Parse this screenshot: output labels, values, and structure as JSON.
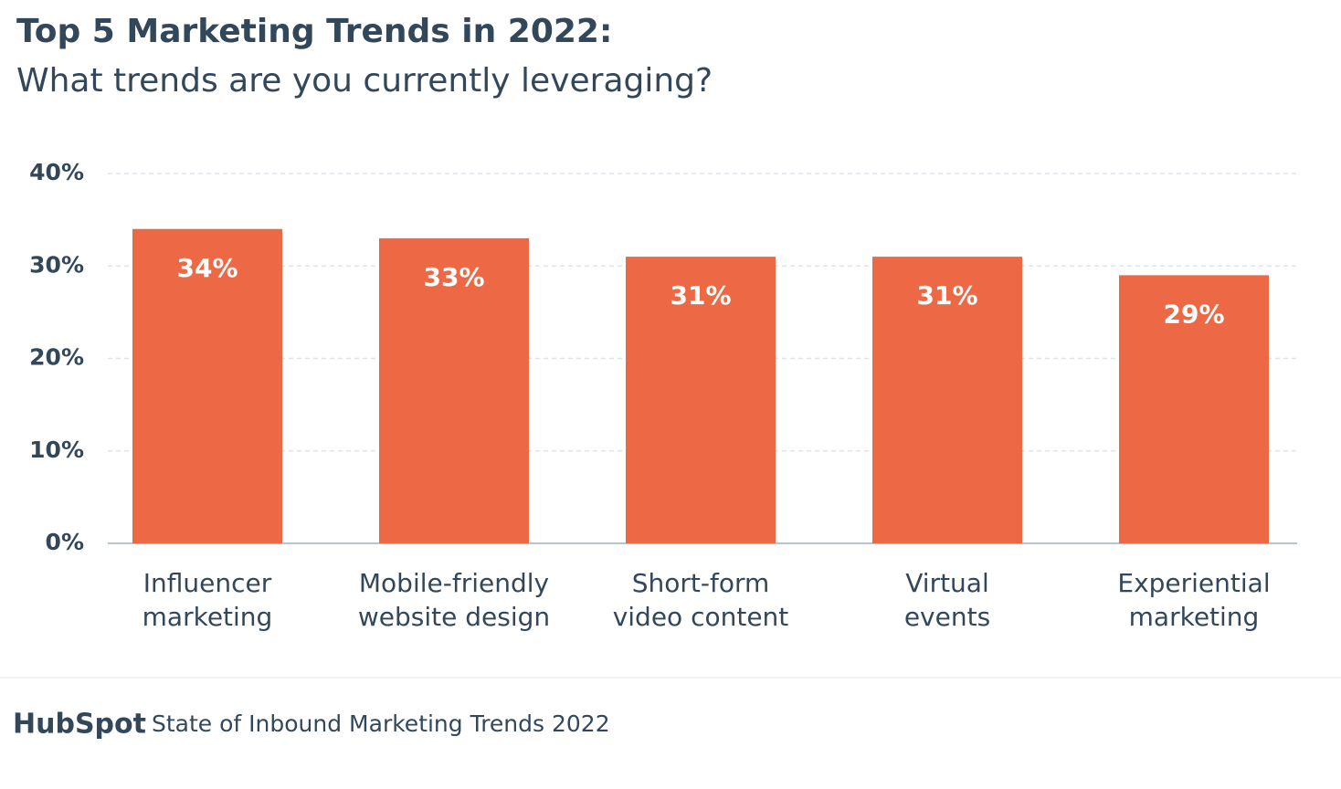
{
  "chart_data": {
    "type": "bar",
    "title": "Top 5 Marketing Trends in 2022:",
    "subtitle": "What trends are you currently leveraging?",
    "categories": [
      "Influencer\nmarketing",
      "Mobile-friendly\nwebsite design",
      "Short-form\nvideo content",
      "Virtual\nevents",
      "Experiential\nmarketing"
    ],
    "values": [
      34,
      33,
      31,
      31,
      29
    ],
    "value_labels": [
      "34%",
      "33%",
      "31%",
      "31%",
      "29%"
    ],
    "color": "#ed6844",
    "ylim": [
      0,
      40
    ],
    "yticks": [
      {
        "value": 0,
        "label": "0%"
      },
      {
        "value": 10,
        "label": "10%"
      },
      {
        "value": 20,
        "label": "20%"
      },
      {
        "value": 30,
        "label": "30%"
      },
      {
        "value": 40,
        "label": "40%"
      }
    ],
    "grid": true,
    "brand": "HubSpot",
    "source": "State of Inbound Marketing Trends 2022"
  }
}
